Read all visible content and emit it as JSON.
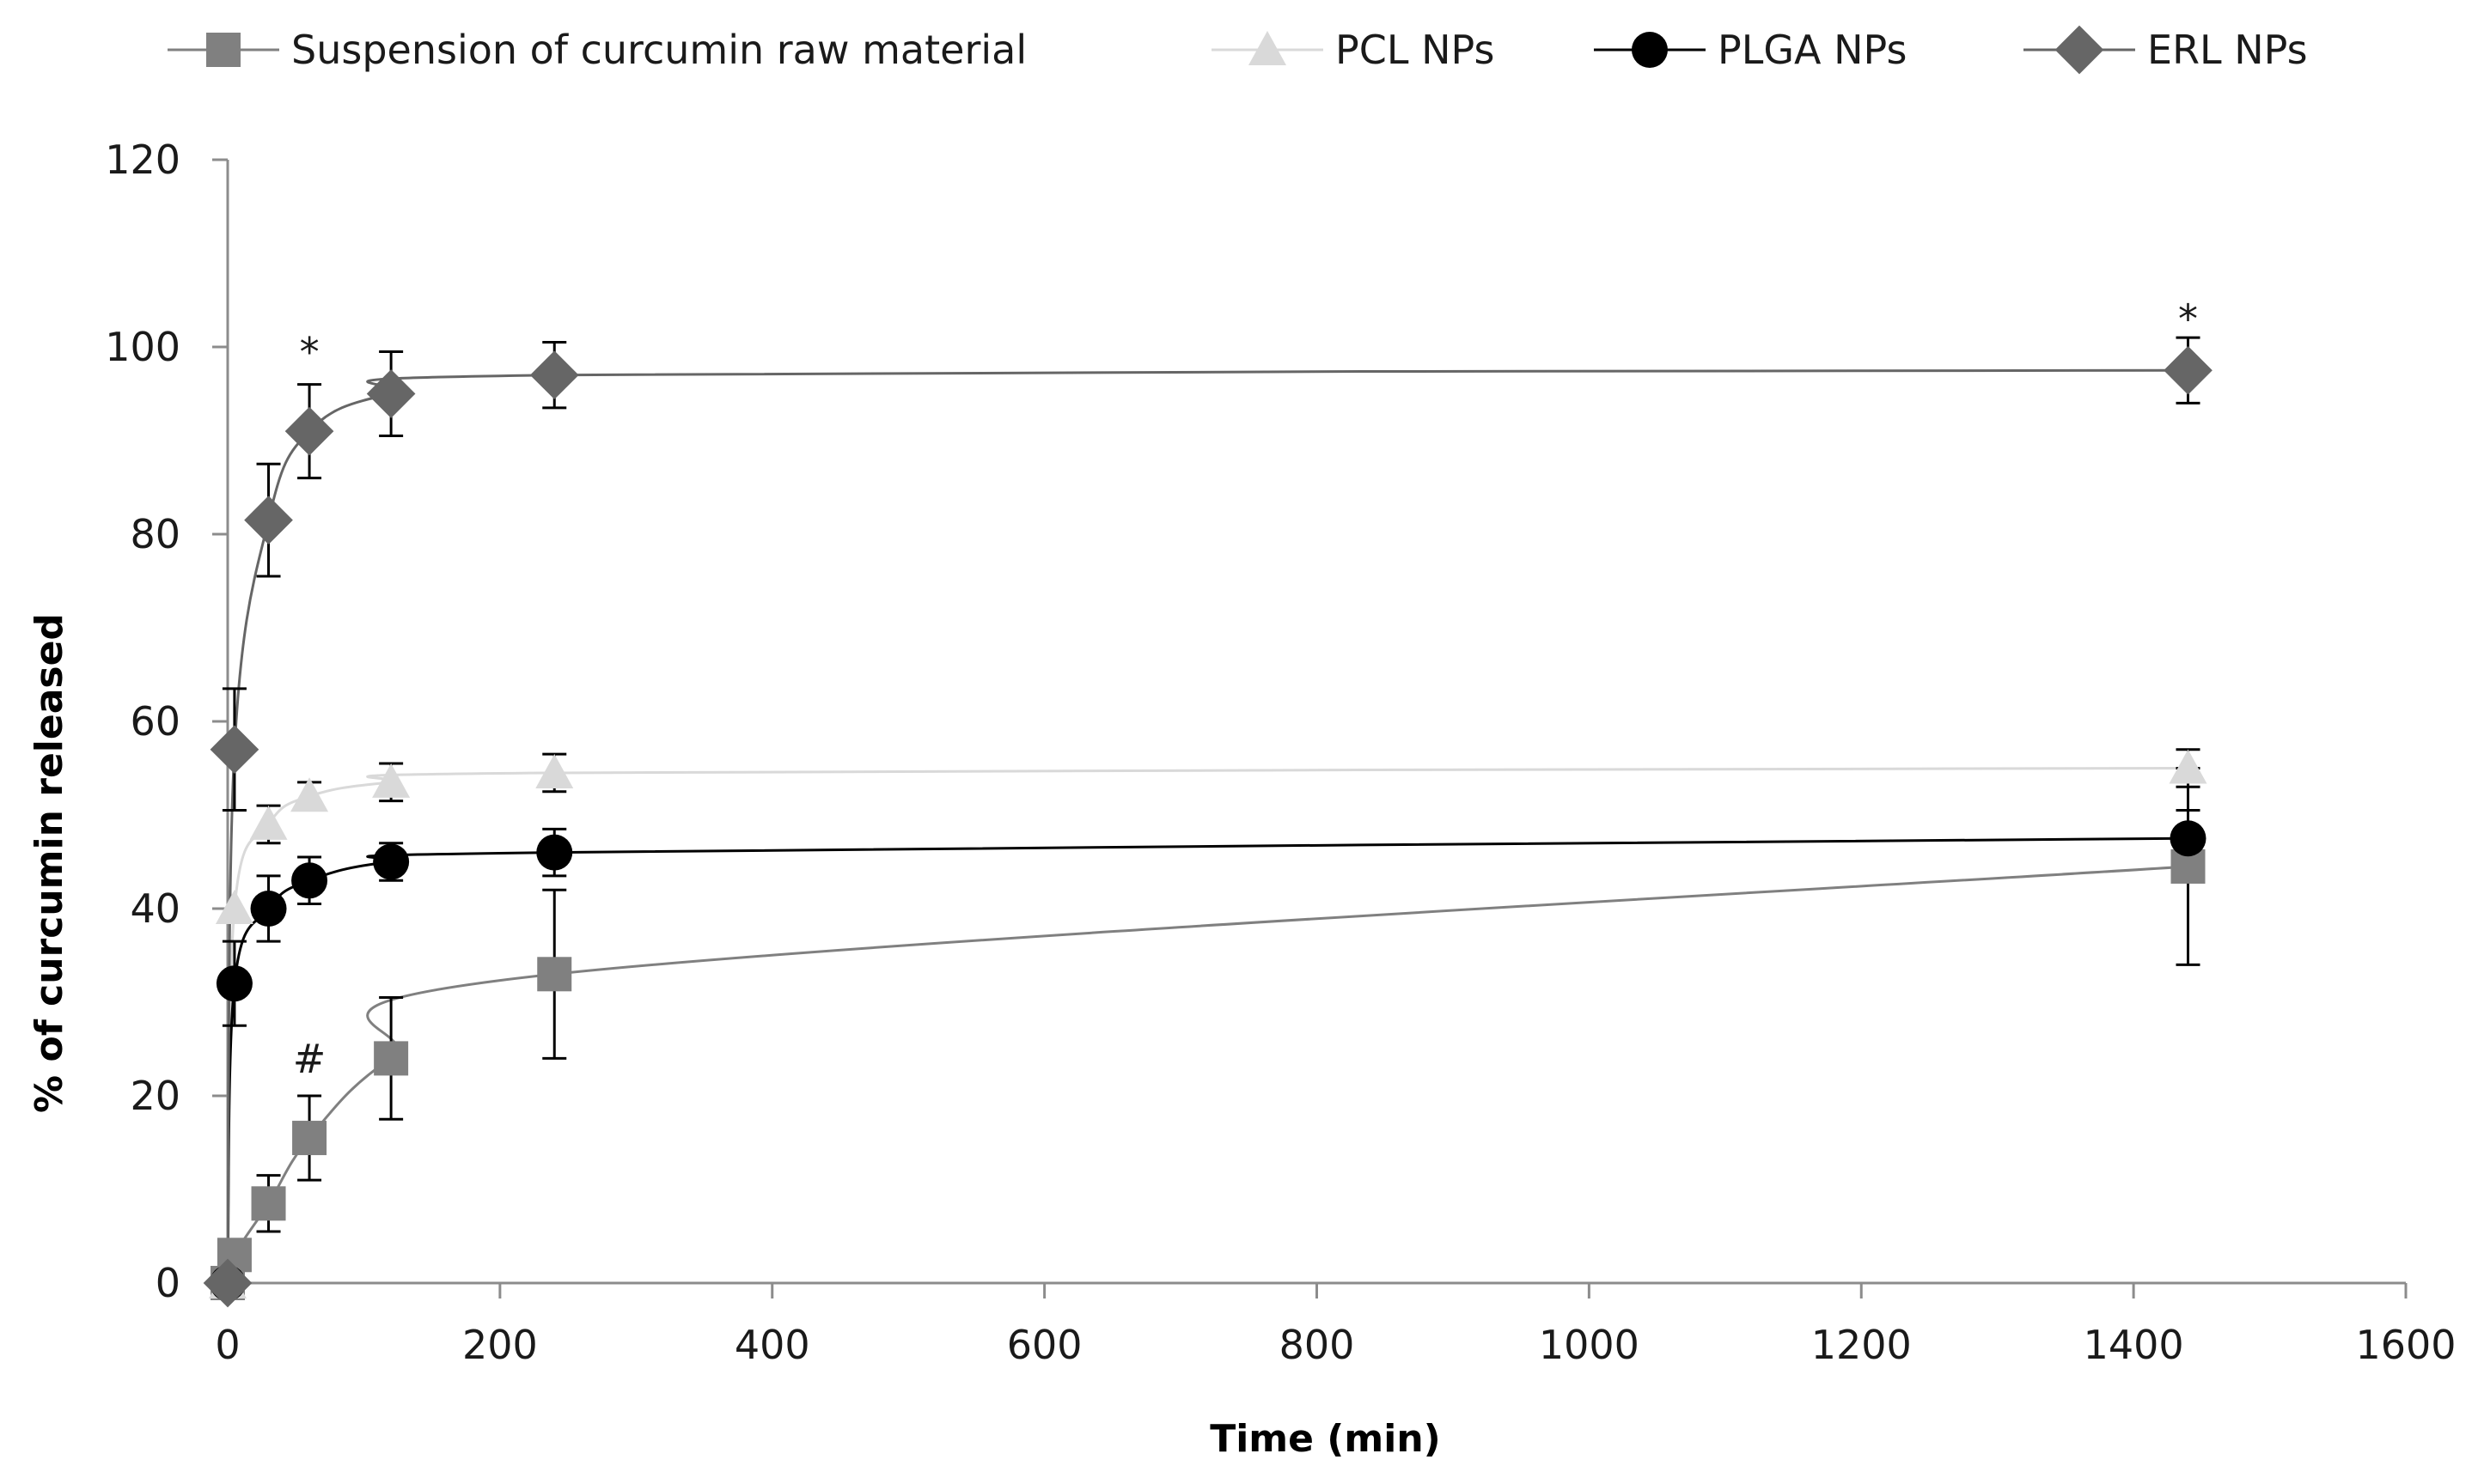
{
  "chart_data": {
    "type": "line",
    "title": "",
    "xlabel": "Time (min)",
    "ylabel": "% of curcumin  released",
    "xlim": [
      0,
      1600
    ],
    "ylim": [
      0,
      120
    ],
    "xticks": [
      0,
      200,
      400,
      600,
      800,
      1000,
      1200,
      1400,
      1600
    ],
    "yticks": [
      0,
      20,
      40,
      60,
      80,
      100,
      120
    ],
    "grid": false,
    "legend_position": "top",
    "series": [
      {
        "name": "Suspension of curcumin raw material",
        "marker": "square",
        "color": "#808080",
        "x": [
          0,
          5,
          30,
          60,
          120,
          240,
          1440
        ],
        "y": [
          0,
          3,
          8.5,
          15.5,
          24,
          33,
          44.5
        ],
        "error": [
          0,
          0,
          3,
          4.5,
          6.5,
          9,
          10.5
        ]
      },
      {
        "name": "PCL NPs",
        "marker": "triangle",
        "color": "#d9d9d9",
        "x": [
          0,
          5,
          30,
          60,
          120,
          240,
          1440
        ],
        "y": [
          0,
          40,
          49,
          52,
          53.5,
          54.5,
          55
        ],
        "error": [
          0,
          0,
          2,
          1.5,
          2,
          2,
          2
        ]
      },
      {
        "name": "PLGA NPs",
        "marker": "circle",
        "color": "#000000",
        "x": [
          0,
          5,
          30,
          60,
          120,
          240,
          1440
        ],
        "y": [
          0,
          32,
          40,
          43,
          45,
          46,
          47.5
        ],
        "error": [
          0,
          4.5,
          3.5,
          2.5,
          2,
          2.5,
          3
        ]
      },
      {
        "name": "ERL NPs",
        "marker": "diamond",
        "color": "#666666",
        "x": [
          0,
          5,
          30,
          60,
          120,
          240,
          1440
        ],
        "y": [
          0,
          57,
          81.5,
          91,
          95,
          97,
          97.5
        ],
        "error": [
          0,
          6.5,
          6,
          5,
          4.5,
          3.5,
          3.5
        ]
      }
    ],
    "annotations": [
      {
        "text": "*",
        "x": 60,
        "y": 98
      },
      {
        "text": "*",
        "x": 1440,
        "y": 101.5
      },
      {
        "text": "#",
        "x": 60,
        "y": 22.5
      }
    ]
  }
}
